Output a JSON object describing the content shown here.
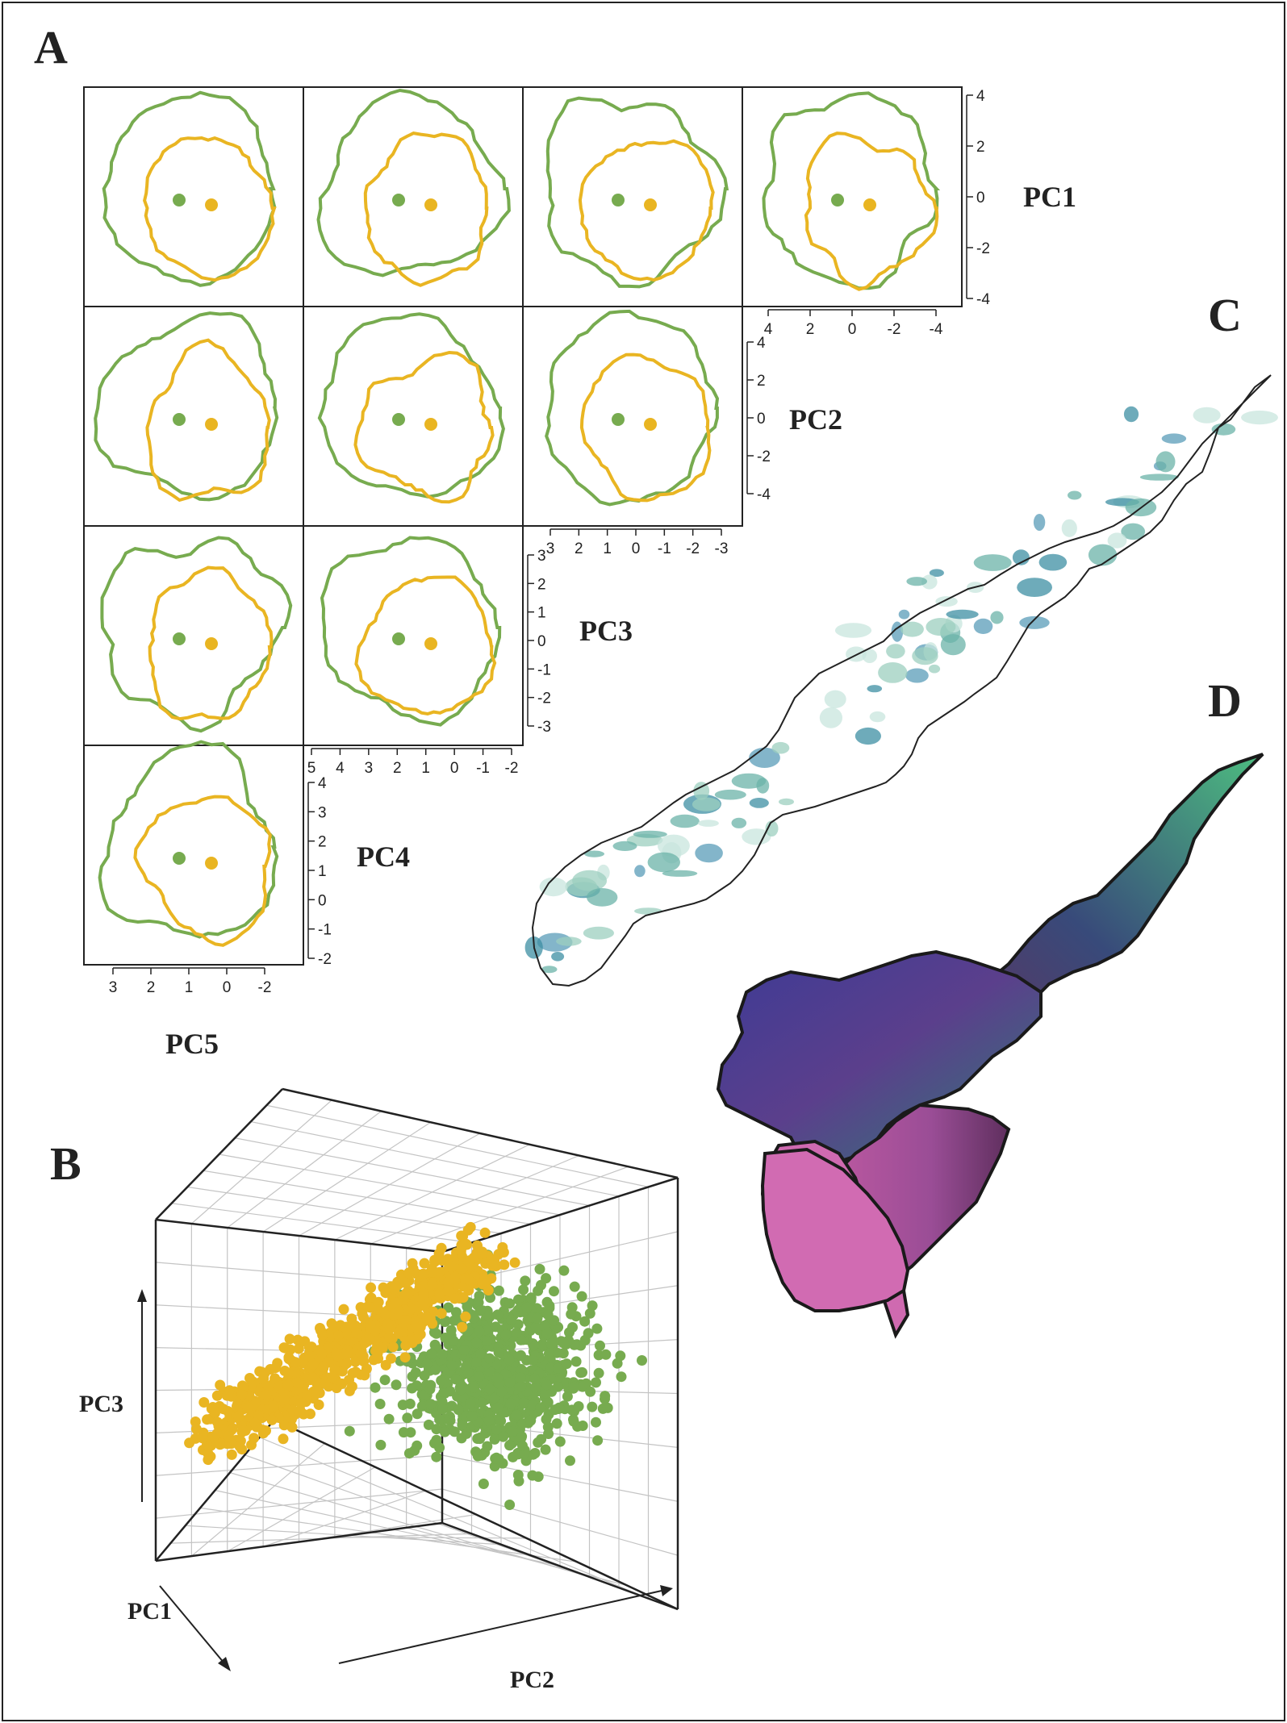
{
  "panel_labels": [
    "A",
    "B",
    "C",
    "D"
  ],
  "colors": {
    "green": "#77ab4f",
    "yellow": "#e9b522",
    "frame": "#222222",
    "grid": "#c4c4c4"
  },
  "chart_data": [
    {
      "id": "A",
      "type": "scatter",
      "description_type": "pairwise density contour matrix",
      "variables": [
        "PC1",
        "PC2",
        "PC3",
        "PC4",
        "PC5"
      ],
      "axis_labels": {
        "PC1": {
          "text": "PC1",
          "ticks": [
            "4",
            "2",
            "0",
            "-2",
            "-4"
          ]
        },
        "PC2": {
          "text": "PC2",
          "ticks": [
            "4",
            "2",
            "0",
            "-2",
            "-4"
          ]
        },
        "PC3": {
          "text": "PC3",
          "ticks": [
            "3",
            "2",
            "1",
            "0",
            "-1",
            "-2",
            "-3"
          ]
        },
        "PC4": {
          "text": "PC4",
          "ticks": [
            "4",
            "3",
            "2",
            "1",
            "0",
            "-1",
            "-2"
          ]
        },
        "PC5": {
          "text": "PC5",
          "ticks": [
            "3",
            "2",
            "1",
            "0",
            "-2"
          ]
        }
      },
      "bottom_ticks": {
        "row1": [
          "4",
          "2",
          "0",
          "-2",
          "-4"
        ],
        "row2": [
          "3",
          "2",
          "1",
          "0",
          "-1",
          "-2",
          "-3"
        ],
        "row3": [
          "5",
          "4",
          "3",
          "2",
          "1",
          "0",
          "-1",
          "-2"
        ]
      },
      "centroids": [
        {
          "panel": "PC5-PC1",
          "group": "green",
          "x": 0.7,
          "y": 0.1
        },
        {
          "panel": "PC5-PC1",
          "group": "yellow",
          "x": 0.0,
          "y": -0.1
        },
        {
          "panel": "PC1-PC4",
          "group": "green",
          "x": 0.8,
          "y": 0.0
        },
        {
          "panel": "PC1-PC4",
          "group": "yellow",
          "x": -1.3,
          "y": -0.1
        }
      ]
    },
    {
      "id": "B",
      "type": "scatter",
      "description_type": "3D scatter",
      "xlabel": "PC1",
      "ylabel": "PC3",
      "zlabel": "PC2",
      "series": [
        {
          "color": "green",
          "n_points": 750
        },
        {
          "color": "yellow",
          "n_points": 750
        }
      ]
    }
  ]
}
